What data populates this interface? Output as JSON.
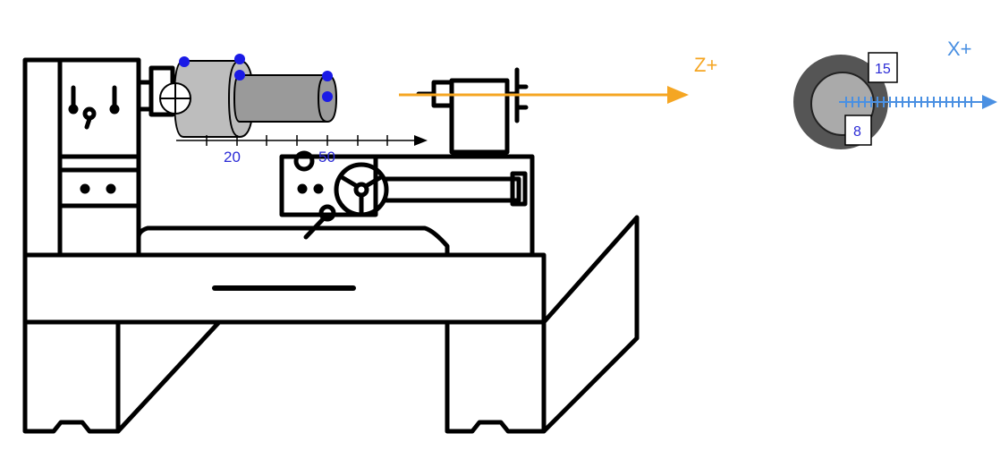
{
  "labels": {
    "z_axis": "Z+",
    "x_axis": "X+",
    "tick_20": "20",
    "tick_50": "50",
    "outer_diameter": "15",
    "inner_diameter": "8"
  },
  "colors": {
    "z_arrow": "#F5A623",
    "x_arrow": "#4A90E2",
    "point": "#1A1AE6",
    "label_text": "#2B2BD6",
    "large_cylinder": "#BDBDBD",
    "small_cylinder": "#9A9A9A",
    "outer_ring": "#555555",
    "inner_disc": "#AAAAAA"
  },
  "icons": {
    "machine": "lathe-machine",
    "chuck": "chuck-crosshair-icon",
    "tailstock": "tailstock-icon",
    "handwheel": "handwheel-icon"
  }
}
